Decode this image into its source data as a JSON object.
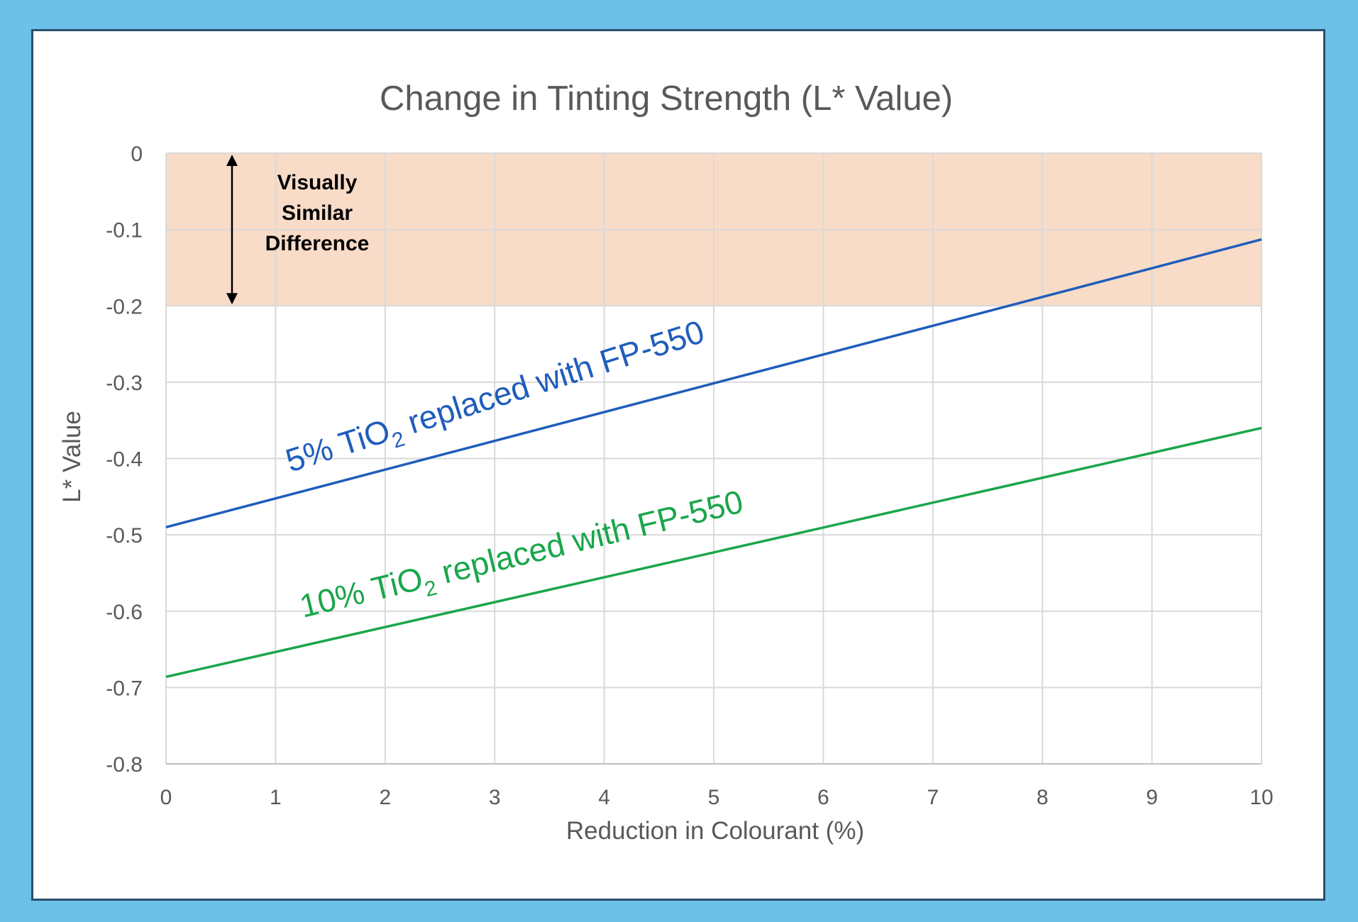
{
  "chart_data": {
    "type": "line",
    "title": "Change in Tinting Strength (L* Value)",
    "xlabel": "Reduction in Colourant (%)",
    "ylabel": "L* Value",
    "xlim": [
      0,
      10
    ],
    "ylim": [
      -0.8,
      0
    ],
    "x_ticks": [
      0,
      1,
      2,
      3,
      4,
      5,
      6,
      7,
      8,
      9,
      10
    ],
    "y_ticks": [
      0,
      -0.1,
      -0.2,
      -0.3,
      -0.4,
      -0.5,
      -0.6,
      -0.7,
      -0.8
    ],
    "grid": true,
    "band": {
      "from": -0.2,
      "to": 0,
      "color": "#f8dcc8",
      "label_lines": [
        "Visually",
        "Similar",
        "Difference"
      ]
    },
    "series": [
      {
        "label": "5% TiO2 replaced with FP-550",
        "label_parts": [
          "5% TiO",
          "2",
          " replaced with FP-550"
        ],
        "color": "#1f5dbb",
        "x": [
          0,
          10
        ],
        "y": [
          -0.49,
          -0.113
        ]
      },
      {
        "label": "10% TiO2 replaced with FP-550",
        "label_parts": [
          "10% TiO",
          "2",
          " replaced with FP-550"
        ],
        "color": "#1aa64b",
        "x": [
          0,
          10
        ],
        "y": [
          -0.686,
          -0.36
        ]
      }
    ]
  }
}
